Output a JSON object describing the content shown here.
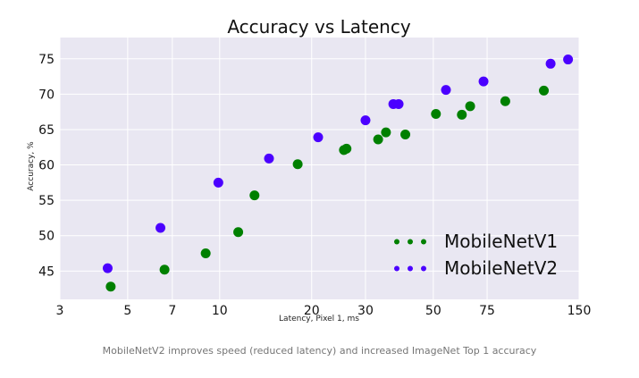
{
  "caption": "MobileNetV2 improves speed (reduced latency) and increased ImageNet Top 1 accuracy",
  "chart_data": {
    "type": "scatter",
    "title": "Accuracy vs Latency",
    "xlabel": "Latency, Pixel 1, ms",
    "ylabel": "Accuracy, %",
    "x_scale": "log",
    "xlim": [
      3,
      150
    ],
    "ylim": [
      41,
      78
    ],
    "x_ticks": [
      3,
      5,
      7,
      10,
      20,
      30,
      50,
      75,
      150
    ],
    "y_ticks": [
      45,
      50,
      55,
      60,
      65,
      70,
      75
    ],
    "grid": true,
    "legend_position": "bottom-right",
    "series": [
      {
        "name": "MobileNetV1",
        "color": "#008000",
        "points": [
          {
            "x": 4.4,
            "y": 42.8
          },
          {
            "x": 6.6,
            "y": 45.2
          },
          {
            "x": 9.0,
            "y": 47.5
          },
          {
            "x": 11.5,
            "y": 50.5
          },
          {
            "x": 13.0,
            "y": 55.7
          },
          {
            "x": 18.0,
            "y": 60.1
          },
          {
            "x": 25.5,
            "y": 62.1
          },
          {
            "x": 26.0,
            "y": 62.3
          },
          {
            "x": 33.0,
            "y": 63.6
          },
          {
            "x": 35.0,
            "y": 64.6
          },
          {
            "x": 40.5,
            "y": 64.3
          },
          {
            "x": 51.0,
            "y": 67.2
          },
          {
            "x": 62.0,
            "y": 67.1
          },
          {
            "x": 66.0,
            "y": 68.3
          },
          {
            "x": 86.0,
            "y": 69.0
          },
          {
            "x": 115.0,
            "y": 70.5
          }
        ]
      },
      {
        "name": "MobileNetV2",
        "color": "#4b00ff",
        "points": [
          {
            "x": 4.3,
            "y": 45.4
          },
          {
            "x": 6.4,
            "y": 51.1
          },
          {
            "x": 9.9,
            "y": 57.5
          },
          {
            "x": 14.5,
            "y": 60.9
          },
          {
            "x": 21.0,
            "y": 63.9
          },
          {
            "x": 30.0,
            "y": 66.3
          },
          {
            "x": 37.0,
            "y": 68.6
          },
          {
            "x": 38.5,
            "y": 68.6
          },
          {
            "x": 55.0,
            "y": 70.6
          },
          {
            "x": 73.0,
            "y": 71.8
          },
          {
            "x": 121.0,
            "y": 74.3
          },
          {
            "x": 138.0,
            "y": 74.9
          }
        ]
      }
    ]
  }
}
